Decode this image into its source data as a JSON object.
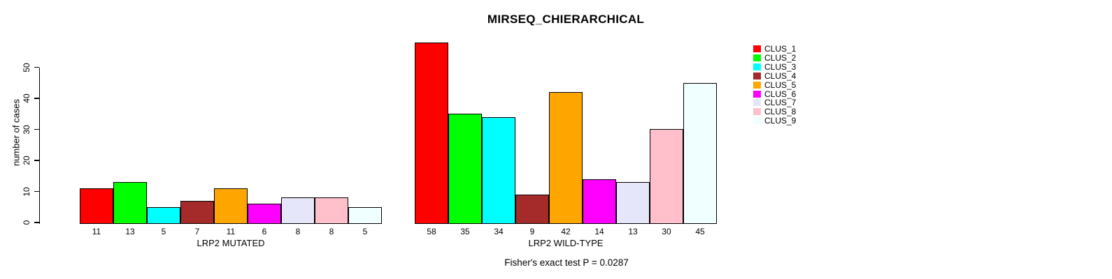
{
  "chart_data": {
    "type": "bar",
    "title": "MIRSEQ_CHIERARCHICAL",
    "ylabel": "number of cases",
    "yticks": [
      0,
      10,
      20,
      30,
      40,
      50
    ],
    "ylim": [
      0,
      58
    ],
    "grid": false,
    "legend_position": "right",
    "legend_entries": [
      "CLUS_1",
      "CLUS_2",
      "CLUS_3",
      "CLUS_4",
      "CLUS_5",
      "CLUS_6",
      "CLUS_7",
      "CLUS_8",
      "CLUS_9"
    ],
    "colors": [
      "#FF0000",
      "#00FF00",
      "#00FFFF",
      "#A52A2A",
      "#FFA500",
      "#FF00FF",
      "#E6E6FA",
      "#FFC0CB",
      "#F0FFFF"
    ],
    "bar_border_color": "#000000",
    "groups": [
      {
        "label": "LRP2 MUTATED",
        "values": [
          11,
          13,
          5,
          7,
          11,
          6,
          8,
          8,
          5
        ]
      },
      {
        "label": "LRP2 WILD-TYPE",
        "values": [
          58,
          35,
          34,
          9,
          42,
          14,
          13,
          30,
          45
        ]
      }
    ],
    "footnote": "Fisher's exact test P = 0.0287"
  }
}
